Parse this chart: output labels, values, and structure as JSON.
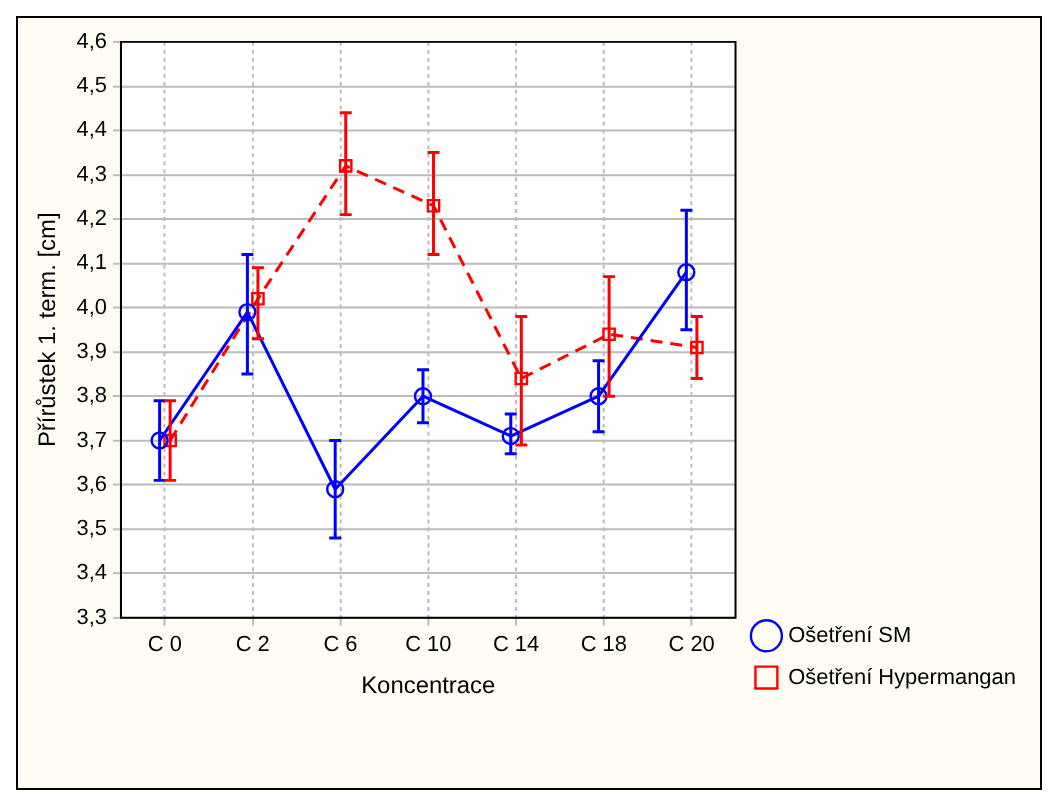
{
  "chart_data": {
    "type": "line",
    "xlabel": "Koncentrace",
    "ylabel": "Přírůstek 1. term. [cm]",
    "categories": [
      "C 0",
      "C 2",
      "C 6",
      "C 10",
      "C 14",
      "C 18",
      "C 20"
    ],
    "series": [
      {
        "name": "Ošetření SM",
        "color": "#0000ff",
        "marker": "circle",
        "line_style": "solid",
        "values": [
          3.7,
          3.99,
          3.59,
          3.8,
          3.71,
          3.8,
          4.08
        ],
        "errors": [
          [
            3.61,
            3.79
          ],
          [
            3.85,
            4.12
          ],
          [
            3.48,
            3.7
          ],
          [
            3.74,
            3.86
          ],
          [
            3.67,
            3.76
          ],
          [
            3.72,
            3.88
          ],
          [
            3.95,
            4.22
          ]
        ]
      },
      {
        "name": "Ošetření Hypermangan",
        "color": "#ff0000",
        "marker": "square",
        "line_style": "dashed",
        "values": [
          3.7,
          4.02,
          4.32,
          4.23,
          3.84,
          3.94,
          3.91
        ],
        "errors": [
          [
            3.61,
            3.79
          ],
          [
            3.93,
            4.09
          ],
          [
            4.21,
            4.44
          ],
          [
            4.12,
            4.35
          ],
          [
            3.69,
            3.98
          ],
          [
            3.8,
            4.07
          ],
          [
            3.84,
            3.98
          ]
        ]
      }
    ],
    "ylim": [
      3.3,
      4.6
    ],
    "yticks": [
      {
        "value": 3.3,
        "label": "3,3"
      },
      {
        "value": 3.4,
        "label": "3,4"
      },
      {
        "value": 3.5,
        "label": "3,5"
      },
      {
        "value": 3.6,
        "label": "3,6"
      },
      {
        "value": 3.7,
        "label": "3,7"
      },
      {
        "value": 3.8,
        "label": "3,8"
      },
      {
        "value": 3.9,
        "label": "3,9"
      },
      {
        "value": 4.0,
        "label": "4,0"
      },
      {
        "value": 4.1,
        "label": "4,1"
      },
      {
        "value": 4.2,
        "label": "4,2"
      },
      {
        "value": 4.3,
        "label": "4,3"
      },
      {
        "value": 4.4,
        "label": "4,4"
      },
      {
        "value": 4.5,
        "label": "4,5"
      },
      {
        "value": 4.6,
        "label": "4,6"
      }
    ],
    "grid": true,
    "legend": "right"
  }
}
